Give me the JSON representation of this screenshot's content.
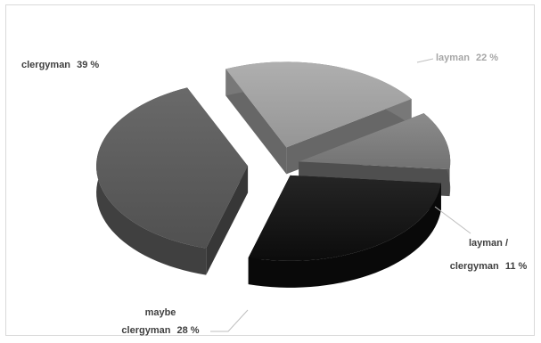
{
  "chart_data": {
    "type": "pie",
    "style": "3d-exploded",
    "title": "",
    "slices": [
      {
        "label": "clergyman",
        "value": 39,
        "display": "39 %",
        "color": "#595959"
      },
      {
        "label": "layman",
        "value": 22,
        "display": "22 %",
        "color": "#a6a6a6"
      },
      {
        "label": "layman / clergyman",
        "value": 11,
        "display": "11 %",
        "color": "#7f7f7f"
      },
      {
        "label": "maybe clergyman",
        "value": 28,
        "display": "28 %",
        "color": "#0d0d0d"
      }
    ],
    "labels": {
      "clergyman": "clergyman",
      "clergyman_value": "39 %",
      "layman": "layman",
      "layman_value": "22 %",
      "lc_line1": "layman /",
      "lc_line2": "clergyman",
      "lc_value": "11 %",
      "mc_line1": "maybe",
      "mc_line2": "clergyman",
      "mc_value": "28 %"
    }
  }
}
